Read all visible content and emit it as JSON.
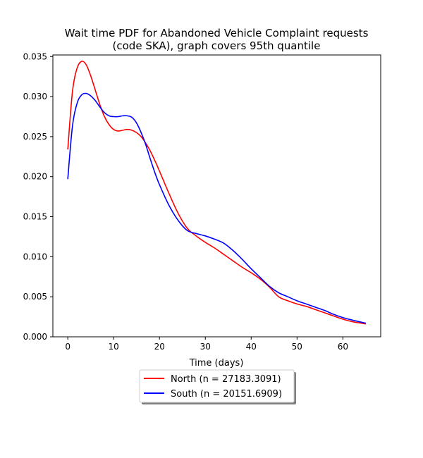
{
  "chart_data": {
    "type": "line",
    "title_line1": "Wait time PDF for Abandoned Vehicle Complaint  requests",
    "title_line2": "(code SKA), graph covers 95th quantile",
    "xlabel": "Time (days)",
    "ylabel": "",
    "xlim": [
      -3.25,
      68.25
    ],
    "ylim": [
      0,
      0.0352
    ],
    "x_ticks": [
      0,
      10,
      20,
      30,
      40,
      50,
      60
    ],
    "x_tick_labels": [
      "0",
      "10",
      "20",
      "30",
      "40",
      "50",
      "60"
    ],
    "y_ticks": [
      0,
      0.005,
      0.01,
      0.015,
      0.02,
      0.025,
      0.03,
      0.035
    ],
    "y_tick_labels": [
      "0.000",
      "0.005",
      "0.010",
      "0.015",
      "0.020",
      "0.025",
      "0.030",
      "0.035"
    ],
    "grid": false,
    "legend_position": "below-center",
    "series": [
      {
        "name": "North (n = 27183.3091)",
        "color": "#ff0000",
        "x": [
          0,
          1,
          2,
          3,
          4,
          5,
          6,
          7,
          8,
          9,
          10,
          11,
          12,
          13,
          14,
          15,
          16,
          17,
          18,
          19,
          20,
          22,
          24,
          26,
          28,
          30,
          32,
          34,
          36,
          38,
          40,
          42,
          44,
          46,
          48,
          50,
          52,
          54,
          56,
          58,
          60,
          62,
          65
        ],
        "y": [
          0.0234,
          0.0305,
          0.0335,
          0.0344,
          0.034,
          0.0326,
          0.0308,
          0.029,
          0.0275,
          0.0265,
          0.0259,
          0.0257,
          0.0258,
          0.0259,
          0.0258,
          0.0255,
          0.025,
          0.0242,
          0.0232,
          0.022,
          0.0207,
          0.018,
          0.0155,
          0.0136,
          0.0126,
          0.0118,
          0.0111,
          0.0103,
          0.0095,
          0.0087,
          0.008,
          0.0072,
          0.0062,
          0.005,
          0.0045,
          0.0041,
          0.0038,
          0.0034,
          0.003,
          0.0026,
          0.0022,
          0.0019,
          0.0016
        ]
      },
      {
        "name": "South (n = 20151.6909)",
        "color": "#0000ff",
        "x": [
          0,
          1,
          2,
          3,
          4,
          5,
          6,
          7,
          8,
          9,
          10,
          11,
          12,
          13,
          14,
          15,
          16,
          17,
          18,
          19,
          20,
          22,
          24,
          26,
          28,
          30,
          32,
          34,
          36,
          38,
          40,
          42,
          44,
          46,
          48,
          50,
          52,
          54,
          56,
          58,
          60,
          62,
          65
        ],
        "y": [
          0.0197,
          0.0262,
          0.0291,
          0.0302,
          0.0304,
          0.0301,
          0.0295,
          0.0287,
          0.028,
          0.0276,
          0.0275,
          0.0275,
          0.0276,
          0.0276,
          0.0274,
          0.0267,
          0.0255,
          0.024,
          0.0222,
          0.0205,
          0.019,
          0.0165,
          0.0146,
          0.0133,
          0.0129,
          0.0126,
          0.0122,
          0.0117,
          0.0108,
          0.0097,
          0.0085,
          0.0074,
          0.0063,
          0.0055,
          0.005,
          0.0045,
          0.0041,
          0.0037,
          0.0033,
          0.0028,
          0.0024,
          0.0021,
          0.0017
        ]
      }
    ]
  }
}
